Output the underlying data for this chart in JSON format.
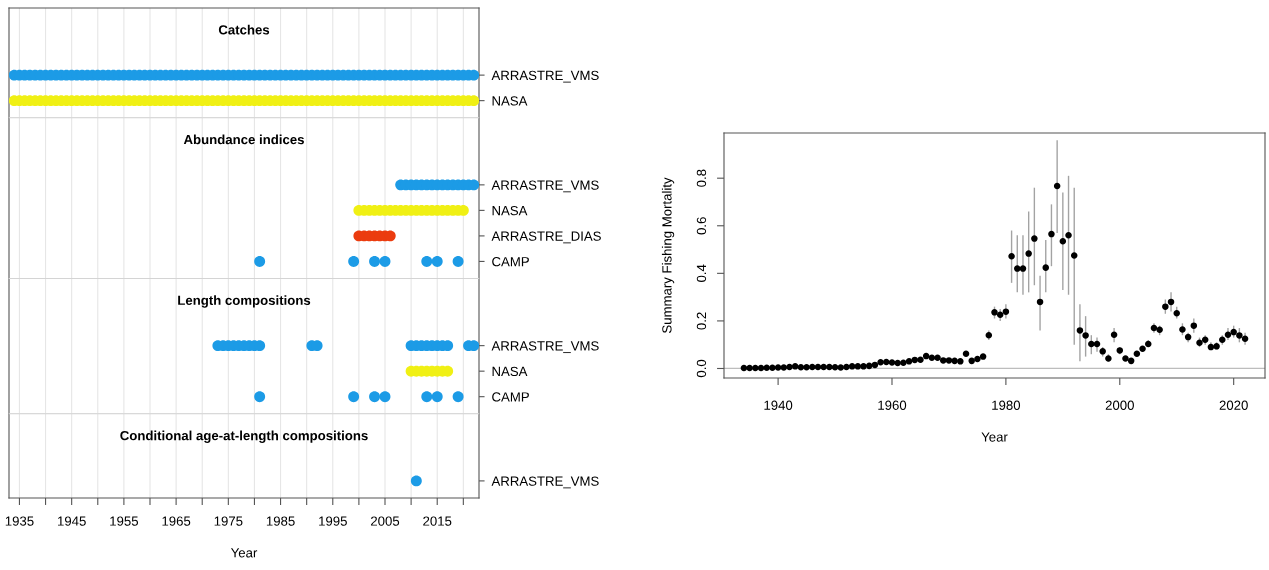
{
  "chart_data": [
    {
      "type": "scatter",
      "orientation": "horizontal",
      "title": "Catches",
      "categories": [
        "ARRASTRE_VMS",
        "NASA"
      ],
      "series": [
        {
          "color": "#1c9be6",
          "x": [
            "ARRASTRE_VMS",
            "ARRASTRE_VMS",
            "ARRASTRE_VMS",
            "ARRASTRE_VMS",
            "ARRASTRE_VMS",
            "ARRASTRE_VMS",
            "ARRASTRE_VMS",
            "ARRASTRE_VMS",
            "ARRASTRE_VMS",
            "ARRASTRE_VMS",
            "ARRASTRE_VMS",
            "ARRASTRE_VMS",
            "ARRASTRE_VMS",
            "ARRASTRE_VMS",
            "ARRASTRE_VMS",
            "ARRASTRE_VMS",
            "ARRASTRE_VMS",
            "ARRASTRE_VMS",
            "ARRASTRE_VMS",
            "ARRASTRE_VMS",
            "ARRASTRE_VMS",
            "ARRASTRE_VMS",
            "ARRASTRE_VMS",
            "ARRASTRE_VMS",
            "ARRASTRE_VMS",
            "ARRASTRE_VMS",
            "ARRASTRE_VMS",
            "ARRASTRE_VMS",
            "ARRASTRE_VMS",
            "ARRASTRE_VMS",
            "ARRASTRE_VMS",
            "ARRASTRE_VMS",
            "ARRASTRE_VMS",
            "ARRASTRE_VMS",
            "ARRASTRE_VMS",
            "ARRASTRE_VMS",
            "ARRASTRE_VMS",
            "ARRASTRE_VMS",
            "ARRASTRE_VMS",
            "ARRASTRE_VMS",
            "ARRASTRE_VMS",
            "ARRASTRE_VMS",
            "ARRASTRE_VMS",
            "ARRASTRE_VMS",
            "ARRASTRE_VMS",
            "ARRASTRE_VMS",
            "ARRASTRE_VMS",
            "ARRASTRE_VMS",
            "ARRASTRE_VMS",
            "ARRASTRE_VMS",
            "ARRASTRE_VMS",
            "ARRASTRE_VMS",
            "ARRASTRE_VMS",
            "ARRASTRE_VMS",
            "ARRASTRE_VMS",
            "ARRASTRE_VMS",
            "ARRASTRE_VMS",
            "ARRASTRE_VMS",
            "ARRASTRE_VMS",
            "ARRASTRE_VMS",
            "ARRASTRE_VMS",
            "ARRASTRE_VMS",
            "ARRASTRE_VMS",
            "ARRASTRE_VMS",
            "ARRASTRE_VMS",
            "ARRASTRE_VMS",
            "ARRASTRE_VMS",
            "ARRASTRE_VMS",
            "ARRASTRE_VMS",
            "ARRASTRE_VMS",
            "ARRASTRE_VMS",
            "ARRASTRE_VMS",
            "ARRASTRE_VMS",
            "ARRASTRE_VMS",
            "ARRASTRE_VMS",
            "ARRASTRE_VMS",
            "ARRASTRE_VMS",
            "ARRASTRE_VMS",
            "ARRASTRE_VMS",
            "ARRASTRE_VMS",
            "ARRASTRE_VMS",
            "ARRASTRE_VMS",
            "ARRASTRE_VMS",
            "ARRASTRE_VMS",
            "ARRASTRE_VMS",
            "ARRASTRE_VMS",
            "ARRASTRE_VMS",
            "ARRASTRE_VMS",
            "ARRASTRE_VMS"
          ],
          "values": [
            1934,
            1935,
            1936,
            1937,
            1938,
            1939,
            1940,
            1941,
            1942,
            1943,
            1944,
            1945,
            1946,
            1947,
            1948,
            1949,
            1950,
            1951,
            1952,
            1953,
            1954,
            1955,
            1956,
            1957,
            1958,
            1959,
            1960,
            1961,
            1962,
            1963,
            1964,
            1965,
            1966,
            1967,
            1968,
            1969,
            1970,
            1971,
            1972,
            1973,
            1974,
            1975,
            1976,
            1977,
            1978,
            1979,
            1980,
            1981,
            1982,
            1983,
            1984,
            1985,
            1986,
            1987,
            1988,
            1989,
            1990,
            1991,
            1992,
            1993,
            1994,
            1995,
            1996,
            1997,
            1998,
            1999,
            2000,
            2001,
            2002,
            2003,
            2004,
            2005,
            2006,
            2007,
            2008,
            2009,
            2010,
            2011,
            2012,
            2013,
            2014,
            2015,
            2016,
            2017,
            2018,
            2019,
            2020,
            2021,
            2022
          ]
        },
        {
          "color": "#f0f014",
          "x": [
            "NASA",
            "NASA",
            "NASA",
            "NASA",
            "NASA",
            "NASA",
            "NASA",
            "NASA",
            "NASA",
            "NASA",
            "NASA",
            "NASA",
            "NASA",
            "NASA",
            "NASA",
            "NASA",
            "NASA",
            "NASA",
            "NASA",
            "NASA",
            "NASA",
            "NASA",
            "NASA",
            "NASA",
            "NASA",
            "NASA",
            "NASA",
            "NASA",
            "NASA",
            "NASA",
            "NASA",
            "NASA",
            "NASA",
            "NASA",
            "NASA",
            "NASA",
            "NASA",
            "NASA",
            "NASA",
            "NASA",
            "NASA",
            "NASA",
            "NASA",
            "NASA",
            "NASA",
            "NASA",
            "NASA",
            "NASA",
            "NASA",
            "NASA",
            "NASA",
            "NASA",
            "NASA",
            "NASA",
            "NASA",
            "NASA",
            "NASA",
            "NASA",
            "NASA",
            "NASA",
            "NASA",
            "NASA",
            "NASA",
            "NASA",
            "NASA",
            "NASA",
            "NASA",
            "NASA",
            "NASA",
            "NASA",
            "NASA",
            "NASA",
            "NASA",
            "NASA",
            "NASA",
            "NASA",
            "NASA",
            "NASA",
            "NASA",
            "NASA",
            "NASA",
            "NASA",
            "NASA",
            "NASA",
            "NASA",
            "NASA",
            "NASA",
            "NASA",
            "NASA"
          ],
          "values": [
            1934,
            1935,
            1936,
            1937,
            1938,
            1939,
            1940,
            1941,
            1942,
            1943,
            1944,
            1945,
            1946,
            1947,
            1948,
            1949,
            1950,
            1951,
            1952,
            1953,
            1954,
            1955,
            1956,
            1957,
            1958,
            1959,
            1960,
            1961,
            1962,
            1963,
            1964,
            1965,
            1966,
            1967,
            1968,
            1969,
            1970,
            1971,
            1972,
            1973,
            1974,
            1975,
            1976,
            1977,
            1978,
            1979,
            1980,
            1981,
            1982,
            1983,
            1984,
            1985,
            1986,
            1987,
            1988,
            1989,
            1990,
            1991,
            1992,
            1993,
            1994,
            1995,
            1996,
            1997,
            1998,
            1999,
            2000,
            2001,
            2002,
            2003,
            2004,
            2005,
            2006,
            2007,
            2008,
            2009,
            2010,
            2011,
            2012,
            2013,
            2014,
            2015,
            2016,
            2017,
            2018,
            2019,
            2020,
            2021,
            2022
          ]
        }
      ],
      "xlim": [
        1933,
        2023
      ],
      "xticks": [
        1935,
        {
          "value": 1940,
          "label": null
        },
        1945,
        {
          "value": 1950,
          "label": null
        },
        1955,
        {
          "value": 1960,
          "label": null
        },
        1965,
        {
          "value": 1970,
          "label": null
        },
        1975,
        {
          "value": 1980,
          "label": null
        },
        1985,
        {
          "value": 1990,
          "label": null
        },
        1995,
        {
          "value": 2000,
          "label": null
        },
        2005,
        {
          "value": 2010,
          "label": null
        },
        2015,
        {
          "value": 2020,
          "label": null
        }
      ],
      "grid": "x",
      "marker": "circle",
      "tick_labels": "y"
    },
    {
      "type": "scatter",
      "orientation": "horizontal",
      "title": "Abundance indices",
      "categories": [
        "ARRASTRE_VMS",
        "NASA",
        "ARRASTRE_DIAS",
        "CAMP"
      ],
      "series": [
        {
          "color": "#1c9be6",
          "x": [
            "ARRASTRE_VMS",
            "ARRASTRE_VMS",
            "ARRASTRE_VMS",
            "ARRASTRE_VMS",
            "ARRASTRE_VMS",
            "ARRASTRE_VMS",
            "ARRASTRE_VMS",
            "ARRASTRE_VMS",
            "ARRASTRE_VMS",
            "ARRASTRE_VMS",
            "ARRASTRE_VMS",
            "ARRASTRE_VMS",
            "ARRASTRE_VMS",
            "ARRASTRE_VMS",
            "ARRASTRE_VMS"
          ],
          "values": [
            2008,
            2009,
            2010,
            2011,
            2012,
            2013,
            2014,
            2015,
            2016,
            2017,
            2018,
            2019,
            2020,
            2021,
            2022
          ]
        },
        {
          "color": "#f0f014",
          "x": [
            "NASA",
            "NASA",
            "NASA",
            "NASA",
            "NASA",
            "NASA",
            "NASA",
            "NASA",
            "NASA",
            "NASA",
            "NASA",
            "NASA",
            "NASA",
            "NASA",
            "NASA",
            "NASA",
            "NASA",
            "NASA",
            "NASA",
            "NASA",
            "NASA"
          ],
          "values": [
            2000,
            2001,
            2002,
            2003,
            2004,
            2005,
            2006,
            2007,
            2008,
            2009,
            2010,
            2011,
            2012,
            2013,
            2014,
            2015,
            2016,
            2017,
            2018,
            2019,
            2020
          ]
        },
        {
          "color": "#eb3c0f",
          "x": [
            "ARRASTRE_DIAS",
            "ARRASTRE_DIAS",
            "ARRASTRE_DIAS",
            "ARRASTRE_DIAS",
            "ARRASTRE_DIAS",
            "ARRASTRE_DIAS",
            "ARRASTRE_DIAS"
          ],
          "values": [
            2000,
            2001,
            2002,
            2003,
            2004,
            2005,
            2006
          ]
        },
        {
          "color": "#1c9be6",
          "x": [
            "CAMP",
            "CAMP",
            "CAMP",
            "CAMP",
            "CAMP",
            "CAMP",
            "CAMP"
          ],
          "values": [
            1981,
            1999,
            2003,
            2005,
            2013,
            2015,
            2019
          ]
        }
      ],
      "xlim": [
        1933,
        2023
      ],
      "xticks": [
        1935,
        {
          "value": 1940,
          "label": null
        },
        1945,
        {
          "value": 1950,
          "label": null
        },
        1955,
        {
          "value": 1960,
          "label": null
        },
        1965,
        {
          "value": 1970,
          "label": null
        },
        1975,
        {
          "value": 1980,
          "label": null
        },
        1985,
        {
          "value": 1990,
          "label": null
        },
        1995,
        {
          "value": 2000,
          "label": null
        },
        2005,
        {
          "value": 2010,
          "label": null
        },
        2015,
        {
          "value": 2020,
          "label": null
        }
      ],
      "grid": "x",
      "marker": "circle",
      "tick_labels": "y"
    },
    {
      "type": "scatter",
      "orientation": "horizontal",
      "title": "Length compositions",
      "categories": [
        "ARRASTRE_VMS",
        "NASA",
        "CAMP"
      ],
      "series": [
        {
          "color": "#1c9be6",
          "x": [
            "ARRASTRE_VMS",
            "ARRASTRE_VMS",
            "ARRASTRE_VMS",
            "ARRASTRE_VMS",
            "ARRASTRE_VMS",
            "ARRASTRE_VMS",
            "ARRASTRE_VMS",
            "ARRASTRE_VMS",
            "ARRASTRE_VMS",
            "ARRASTRE_VMS",
            "ARRASTRE_VMS",
            "ARRASTRE_VMS",
            "ARRASTRE_VMS",
            "ARRASTRE_VMS",
            "ARRASTRE_VMS",
            "ARRASTRE_VMS",
            "ARRASTRE_VMS",
            "ARRASTRE_VMS",
            "ARRASTRE_VMS",
            "ARRASTRE_VMS",
            "ARRASTRE_VMS"
          ],
          "values": [
            1973,
            1974,
            1975,
            1976,
            1977,
            1978,
            1979,
            1980,
            1981,
            1991,
            1992,
            2010,
            2011,
            2012,
            2013,
            2014,
            2015,
            2016,
            2017,
            2021,
            2022
          ]
        },
        {
          "color": "#f0f014",
          "x": [
            "NASA",
            "NASA",
            "NASA",
            "NASA",
            "NASA",
            "NASA",
            "NASA",
            "NASA"
          ],
          "values": [
            2010,
            2011,
            2012,
            2013,
            2014,
            2015,
            2016,
            2017
          ]
        },
        {
          "color": "#1c9be6",
          "x": [
            "CAMP",
            "CAMP",
            "CAMP",
            "CAMP",
            "CAMP",
            "CAMP",
            "CAMP"
          ],
          "values": [
            1981,
            1999,
            2003,
            2005,
            2013,
            2015,
            2019
          ]
        }
      ],
      "xlim": [
        1933,
        2023
      ],
      "xticks": [
        1935,
        {
          "value": 1940,
          "label": null
        },
        1945,
        {
          "value": 1950,
          "label": null
        },
        1955,
        {
          "value": 1960,
          "label": null
        },
        1965,
        {
          "value": 1970,
          "label": null
        },
        1975,
        {
          "value": 1980,
          "label": null
        },
        1985,
        {
          "value": 1990,
          "label": null
        },
        1995,
        {
          "value": 2000,
          "label": null
        },
        2005,
        {
          "value": 2010,
          "label": null
        },
        2015,
        {
          "value": 2020,
          "label": null
        }
      ],
      "grid": "x",
      "marker": "circle",
      "tick_labels": "y"
    },
    {
      "type": "scatter",
      "orientation": "horizontal",
      "title": "Conditional age-at-length compositions",
      "xlabel": "Year",
      "categories": [
        "ARRASTRE_VMS"
      ],
      "series": [
        {
          "color": "#1c9be6",
          "x": [
            "ARRASTRE_VMS"
          ],
          "values": [
            2011
          ]
        }
      ],
      "xlim": [
        1933,
        2023
      ],
      "xticks": [
        1935,
        {
          "value": 1940,
          "label": null
        },
        1945,
        {
          "value": 1950,
          "label": null
        },
        1955,
        {
          "value": 1960,
          "label": null
        },
        1965,
        {
          "value": 1970,
          "label": null
        },
        1975,
        {
          "value": 1980,
          "label": null
        },
        1985,
        {
          "value": 1990,
          "label": null
        },
        1995,
        {
          "value": 2000,
          "label": null
        },
        2005,
        {
          "value": 2010,
          "label": null
        },
        2015,
        {
          "value": 2020,
          "label": null
        }
      ],
      "grid": "x",
      "marker": "circle"
    },
    {
      "type": "scatter",
      "xlabel": "Year",
      "ylabel": "Summary Fishing Mortality",
      "x": [
        1934,
        1935,
        1936,
        1937,
        1938,
        1939,
        1940,
        1941,
        1942,
        1943,
        1944,
        1945,
        1946,
        1947,
        1948,
        1949,
        1950,
        1951,
        1952,
        1953,
        1954,
        1955,
        1956,
        1957,
        1958,
        1959,
        1960,
        1961,
        1962,
        1963,
        1964,
        1965,
        1966,
        1967,
        1968,
        1969,
        1970,
        1971,
        1972,
        1973,
        1974,
        1975,
        1976,
        1977,
        1978,
        1979,
        1980,
        1981,
        1982,
        1983,
        1984,
        1985,
        1986,
        1987,
        1988,
        1989,
        1990,
        1991,
        1992,
        1993,
        1994,
        1995,
        1996,
        1997,
        1998,
        1999,
        2000,
        2001,
        2002,
        2003,
        2004,
        2005,
        2006,
        2007,
        2008,
        2009,
        2010,
        2011,
        2012,
        2013,
        2014,
        2015,
        2016,
        2017,
        2018,
        2019,
        2020,
        2021,
        2022
      ],
      "series": [
        {
          "color": "#000000",
          "values": [
            0.002,
            0.002,
            0.002,
            0.002,
            0.003,
            0.003,
            0.004,
            0.004,
            0.006,
            0.009,
            0.005,
            0.005,
            0.006,
            0.006,
            0.006,
            0.006,
            0.005,
            0.004,
            0.006,
            0.009,
            0.009,
            0.009,
            0.011,
            0.015,
            0.026,
            0.027,
            0.025,
            0.023,
            0.024,
            0.03,
            0.036,
            0.037,
            0.052,
            0.045,
            0.045,
            0.034,
            0.034,
            0.032,
            0.03,
            0.062,
            0.032,
            0.04,
            0.05,
            0.14,
            0.236,
            0.226,
            0.239,
            0.472,
            0.42,
            0.42,
            0.483,
            0.546,
            0.28,
            0.424,
            0.565,
            0.767,
            0.535,
            0.56,
            0.475,
            0.16,
            0.139,
            0.103,
            0.103,
            0.072,
            0.042,
            0.142,
            0.076,
            0.042,
            0.032,
            0.062,
            0.083,
            0.103,
            0.17,
            0.163,
            0.26,
            0.28,
            0.232,
            0.164,
            0.132,
            0.18,
            0.108,
            0.121,
            0.09,
            0.093,
            0.121,
            0.142,
            0.153,
            0.139,
            0.125
          ],
          "errors": [
            null,
            null,
            null,
            null,
            null,
            null,
            null,
            null,
            null,
            null,
            null,
            null,
            null,
            null,
            null,
            null,
            null,
            null,
            null,
            null,
            null,
            null,
            null,
            null,
            null,
            null,
            null,
            null,
            null,
            null,
            null,
            null,
            null,
            null,
            null,
            null,
            null,
            null,
            null,
            null,
            null,
            null,
            null,
            [
              0.12,
              0.16
            ],
            [
              0.21,
              0.26
            ],
            [
              0.2,
              0.25
            ],
            [
              0.21,
              0.27
            ],
            [
              0.36,
              0.58
            ],
            [
              0.32,
              0.56
            ],
            [
              0.31,
              0.56
            ],
            [
              0.32,
              0.66
            ],
            [
              0.35,
              0.76
            ],
            [
              0.16,
              0.39
            ],
            [
              0.32,
              0.54
            ],
            [
              0.43,
              0.69
            ],
            [
              0.57,
              0.96
            ],
            [
              0.33,
              0.74
            ],
            [
              0.31,
              0.81
            ],
            [
              0.1,
              0.76
            ],
            [
              0.03,
              0.27
            ],
            [
              0.05,
              0.22
            ],
            [
              0.06,
              0.14
            ],
            [
              0.07,
              0.13
            ],
            [
              0.05,
              0.09
            ],
            [
              0.03,
              0.06
            ],
            [
              0.11,
              0.17
            ],
            [
              0.06,
              0.09
            ],
            null,
            null,
            null,
            null,
            [
              0.09,
              0.12
            ],
            [
              0.15,
              0.19
            ],
            [
              0.14,
              0.18
            ],
            [
              0.23,
              0.29
            ],
            [
              0.24,
              0.32
            ],
            [
              0.21,
              0.26
            ],
            [
              0.14,
              0.19
            ],
            [
              0.11,
              0.15
            ],
            [
              0.15,
              0.21
            ],
            [
              0.09,
              0.13
            ],
            [
              0.1,
              0.14
            ],
            [
              0.08,
              0.11
            ],
            [
              0.08,
              0.11
            ],
            [
              0.1,
              0.14
            ],
            [
              0.12,
              0.17
            ],
            [
              0.13,
              0.18
            ],
            [
              0.11,
              0.17
            ],
            [
              0.1,
              0.15
            ]
          ]
        }
      ],
      "xlim": [
        1930.5,
        2025.5
      ],
      "ylim": [
        -0.04,
        0.99
      ],
      "xticks": [
        1940,
        1960,
        1980,
        2000,
        2020
      ],
      "yticks": [
        {
          "value": 0,
          "label": "0.0"
        },
        0.2,
        0.4,
        0.6,
        0.8
      ],
      "ref_lines": [
        {
          "axis": "y",
          "value": 0,
          "color": "#bdbdbd"
        }
      ],
      "marker": "circle"
    }
  ]
}
